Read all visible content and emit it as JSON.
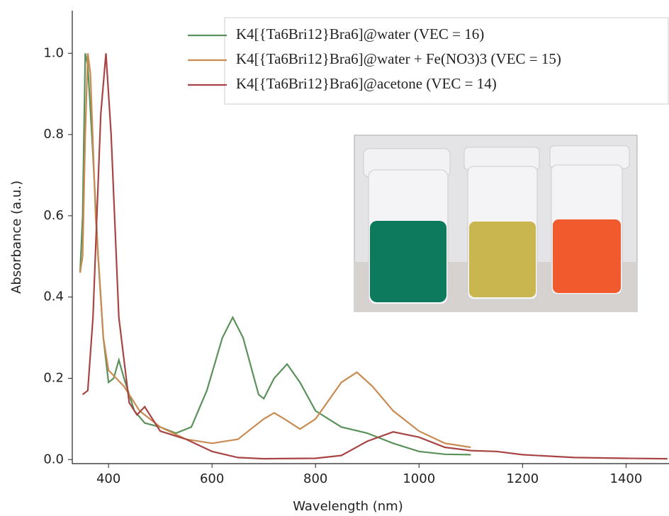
{
  "chart_data": {
    "type": "line",
    "xlabel": "Wavelength (nm)",
    "ylabel": "Absorbance (a.u.)",
    "xlim": [
      330,
      1483
    ],
    "ylim": [
      -0.01,
      1.105
    ],
    "xticks": [
      400,
      600,
      800,
      1000,
      1200,
      1400
    ],
    "yticks": [
      {
        "value": 0,
        "label": "0.0"
      },
      0.2,
      0.4,
      0.6,
      0.8,
      {
        "value": 1,
        "label": "1.0"
      }
    ],
    "series": [
      {
        "name": "K4[{Ta6Bri12}Bra6]@water (VEC = 16)",
        "color": "#5b915b",
        "x": [
          345,
          350,
          355,
          360,
          370,
          380,
          390,
          400,
          410,
          420,
          430,
          450,
          470,
          500,
          530,
          560,
          590,
          620,
          640,
          660,
          690,
          700,
          720,
          745,
          770,
          800,
          850,
          900,
          950,
          1000,
          1050,
          1100
        ],
        "values": [
          0.46,
          0.6,
          1.0,
          0.97,
          0.75,
          0.5,
          0.3,
          0.19,
          0.2,
          0.245,
          0.2,
          0.12,
          0.09,
          0.08,
          0.065,
          0.08,
          0.17,
          0.3,
          0.35,
          0.3,
          0.16,
          0.15,
          0.2,
          0.235,
          0.19,
          0.12,
          0.08,
          0.065,
          0.04,
          0.02,
          0.013,
          0.012
        ]
      },
      {
        "name": "K4[{Ta6Bri12}Bra6]@water + Fe(NO3)3 (VEC = 15)",
        "color": "#c98b52",
        "x": [
          345,
          350,
          355,
          360,
          365,
          375,
          390,
          400,
          430,
          460,
          500,
          550,
          600,
          650,
          700,
          720,
          740,
          770,
          800,
          850,
          880,
          910,
          950,
          1000,
          1050,
          1100
        ],
        "values": [
          0.46,
          0.5,
          0.8,
          1.0,
          0.95,
          0.6,
          0.3,
          0.22,
          0.18,
          0.12,
          0.08,
          0.05,
          0.04,
          0.05,
          0.1,
          0.115,
          0.1,
          0.075,
          0.1,
          0.19,
          0.215,
          0.18,
          0.12,
          0.07,
          0.04,
          0.03
        ]
      },
      {
        "name": "K4[{Ta6Bri12}Bra6]@acetone (VEC = 14)",
        "color": "#a84444",
        "x": [
          350,
          360,
          370,
          385,
          395,
          405,
          420,
          440,
          455,
          470,
          480,
          500,
          550,
          600,
          650,
          700,
          800,
          850,
          900,
          950,
          1000,
          1050,
          1100,
          1150,
          1200,
          1300,
          1400,
          1480
        ],
        "values": [
          0.16,
          0.17,
          0.35,
          0.85,
          1.0,
          0.8,
          0.35,
          0.14,
          0.11,
          0.13,
          0.11,
          0.07,
          0.05,
          0.02,
          0.005,
          0.002,
          0.003,
          0.01,
          0.045,
          0.068,
          0.055,
          0.03,
          0.022,
          0.02,
          0.012,
          0.005,
          0.003,
          0.002
        ]
      }
    ]
  }
}
